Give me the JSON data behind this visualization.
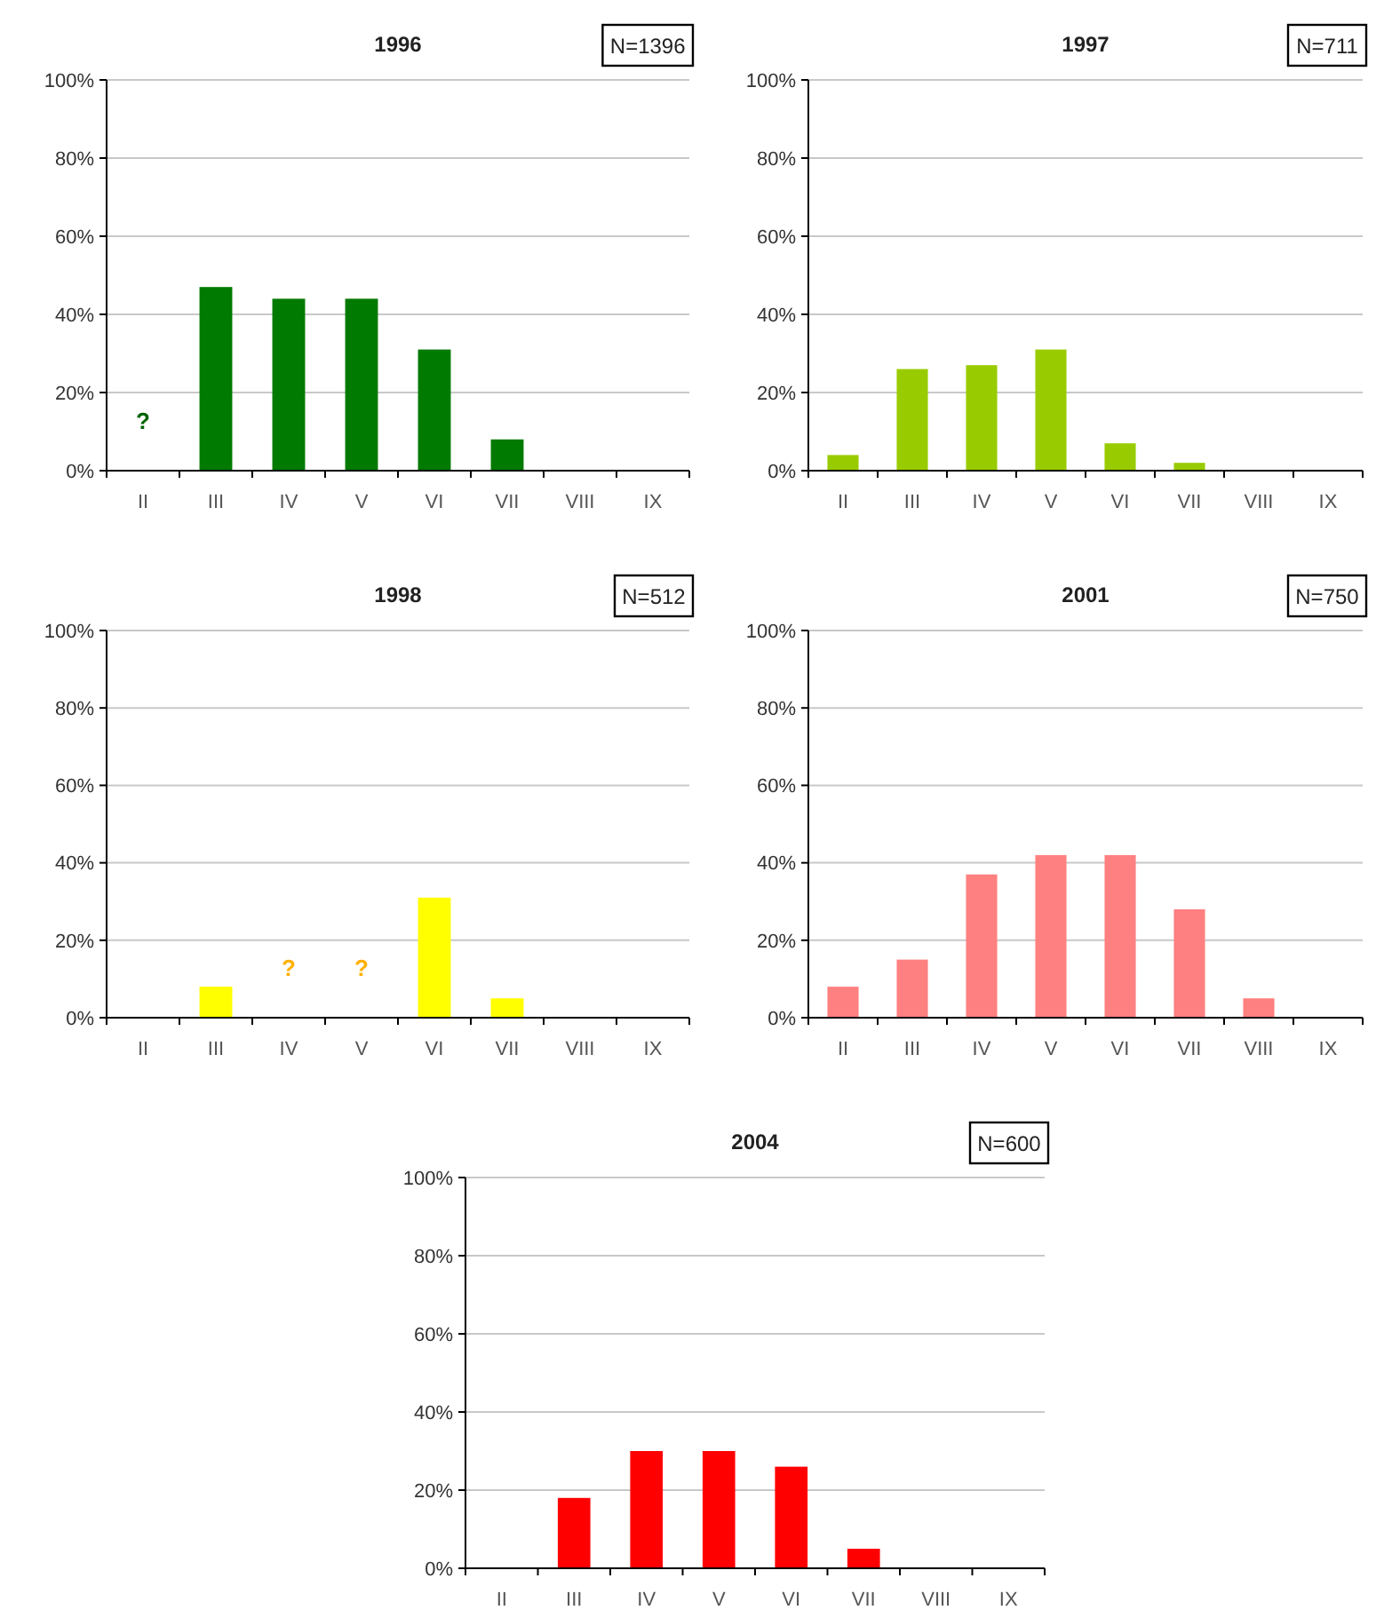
{
  "chart_data": [
    {
      "type": "bar",
      "title": "1996",
      "categories": [
        "II",
        "III",
        "IV",
        "V",
        "VI",
        "VII",
        "VIII",
        "IX"
      ],
      "values": [
        null,
        47,
        44,
        44,
        31,
        8,
        0,
        0
      ],
      "color": "#007a00",
      "ylim": [
        0,
        100
      ],
      "yticks": [
        {
          "value": 0,
          "label": "0%"
        },
        {
          "value": 20,
          "label": "20%"
        },
        {
          "value": 40,
          "label": "40%"
        },
        {
          "value": 60,
          "label": "60%"
        },
        {
          "value": 80,
          "label": "80%"
        },
        {
          "value": 100,
          "label": "100%"
        }
      ],
      "grid": "y",
      "annotations": [
        "N=1396",
        "?"
      ]
    },
    {
      "type": "bar",
      "title": "1997",
      "categories": [
        "II",
        "III",
        "IV",
        "V",
        "VI",
        "VII",
        "VIII",
        "IX"
      ],
      "values": [
        4,
        26,
        27,
        31,
        7,
        2,
        0,
        0
      ],
      "color": "#99cc00",
      "ylim": [
        0,
        100
      ],
      "yticks": [
        {
          "value": 0,
          "label": "0%"
        },
        {
          "value": 20,
          "label": "20%"
        },
        {
          "value": 40,
          "label": "40%"
        },
        {
          "value": 60,
          "label": "60%"
        },
        {
          "value": 80,
          "label": "80%"
        },
        {
          "value": 100,
          "label": "100%"
        }
      ],
      "grid": "y",
      "annotations": [
        "N=711"
      ]
    },
    {
      "type": "bar",
      "title": "1998",
      "categories": [
        "II",
        "III",
        "IV",
        "V",
        "VI",
        "VII",
        "VIII",
        "IX"
      ],
      "values": [
        0,
        8,
        null,
        null,
        31,
        5,
        0,
        0
      ],
      "color": "#ffff00",
      "ylim": [
        0,
        100
      ],
      "yticks": [
        {
          "value": 0,
          "label": "0%"
        },
        {
          "value": 20,
          "label": "20%"
        },
        {
          "value": 40,
          "label": "40%"
        },
        {
          "value": 60,
          "label": "60%"
        },
        {
          "value": 80,
          "label": "80%"
        },
        {
          "value": 100,
          "label": "100%"
        }
      ],
      "grid": "y",
      "annotations": [
        "N=512",
        "?",
        "?"
      ]
    },
    {
      "type": "bar",
      "title": "2001",
      "categories": [
        "II",
        "III",
        "IV",
        "V",
        "VI",
        "VII",
        "VIII",
        "IX"
      ],
      "values": [
        8,
        15,
        37,
        42,
        42,
        28,
        5,
        0
      ],
      "color": "#ff8080",
      "ylim": [
        0,
        100
      ],
      "yticks": [
        {
          "value": 0,
          "label": "0%"
        },
        {
          "value": 20,
          "label": "20%"
        },
        {
          "value": 40,
          "label": "40%"
        },
        {
          "value": 60,
          "label": "60%"
        },
        {
          "value": 80,
          "label": "80%"
        },
        {
          "value": 100,
          "label": "100%"
        }
      ],
      "grid": "y",
      "annotations": [
        "N=750"
      ]
    },
    {
      "type": "bar",
      "title": "2004",
      "categories": [
        "II",
        "III",
        "IV",
        "V",
        "VI",
        "VII",
        "VIII",
        "IX"
      ],
      "values": [
        0,
        18,
        30,
        30,
        26,
        5,
        0,
        0
      ],
      "color": "#ff0000",
      "ylim": [
        0,
        100
      ],
      "yticks": [
        {
          "value": 0,
          "label": "0%"
        },
        {
          "value": 20,
          "label": "20%"
        },
        {
          "value": 40,
          "label": "40%"
        },
        {
          "value": 60,
          "label": "60%"
        },
        {
          "value": 80,
          "label": "80%"
        },
        {
          "value": 100,
          "label": "100%"
        }
      ],
      "grid": "y",
      "annotations": [
        "N=600"
      ]
    }
  ]
}
